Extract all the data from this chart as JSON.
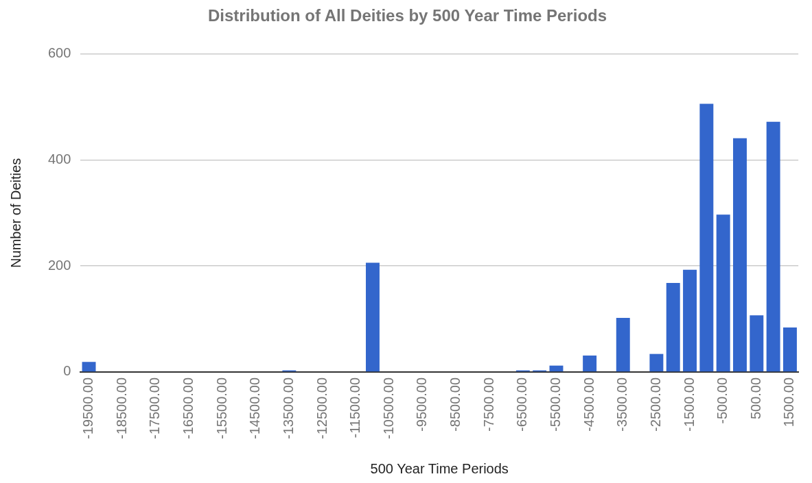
{
  "chart_data": {
    "type": "bar",
    "title": "Distribution of All Deities by 500 Year Time Periods",
    "xlabel": "500 Year Time Periods",
    "ylabel": "Number of Deities",
    "categories": [
      "-19500.00",
      null,
      "-18500.00",
      null,
      "-17500.00",
      null,
      "-16500.00",
      null,
      "-15500.00",
      null,
      "-14500.00",
      null,
      "-13500.00",
      null,
      "-12500.00",
      null,
      "-11500.00",
      null,
      "-10500.00",
      null,
      "-9500.00",
      null,
      "-8500.00",
      null,
      "-7500.00",
      null,
      "-6500.00",
      null,
      "-5500.00",
      null,
      "-4500.00",
      null,
      "-3500.00",
      null,
      "-2500.00",
      null,
      "-1500.00",
      null,
      "-500.00",
      null,
      "500.00",
      null,
      "1500.00"
    ],
    "values": [
      19,
      0,
      0,
      0,
      0,
      0,
      0,
      0,
      0,
      0,
      0,
      0,
      3,
      0,
      0,
      0,
      0,
      206,
      0,
      0,
      0,
      0,
      0,
      0,
      0,
      0,
      3,
      3,
      12,
      0,
      31,
      0,
      102,
      0,
      34,
      168,
      193,
      506,
      297,
      441,
      107,
      472,
      84
    ],
    "color": "#3366cc",
    "ylim": [
      0,
      600
    ],
    "yticks": [
      0,
      200,
      400,
      600
    ],
    "grid": "y"
  }
}
